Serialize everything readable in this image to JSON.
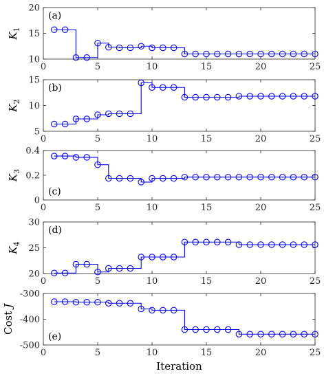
{
  "chart_data": [
    {
      "type": "line",
      "panel_label": "(a)",
      "ylabel": "K",
      "ylabel_sub": "1",
      "xlabel": "",
      "x": [
        1,
        2,
        3,
        4,
        5,
        6,
        7,
        8,
        9,
        10,
        11,
        12,
        13,
        14,
        15,
        16,
        17,
        18,
        19,
        20,
        21,
        22,
        23,
        24,
        25
      ],
      "values": [
        15.7,
        15.7,
        10.3,
        10.3,
        13.1,
        12.3,
        12.2,
        12.2,
        12.5,
        12.2,
        12.2,
        12.2,
        11.0,
        11.0,
        11.0,
        11.0,
        11.0,
        11.0,
        11.0,
        11.0,
        11.0,
        11.0,
        11.0,
        11.0,
        11.0
      ],
      "xlim": [
        0,
        25
      ],
      "ylim": [
        10,
        20
      ],
      "yticks": [
        "10",
        "15",
        "20"
      ],
      "xticks": [
        "0",
        "5",
        "10",
        "15",
        "20",
        "25"
      ]
    },
    {
      "type": "line",
      "panel_label": "(b)",
      "ylabel": "K",
      "ylabel_sub": "2",
      "xlabel": "",
      "x": [
        1,
        2,
        3,
        4,
        5,
        6,
        7,
        8,
        9,
        10,
        11,
        12,
        13,
        14,
        15,
        16,
        17,
        18,
        19,
        20,
        21,
        22,
        23,
        24,
        25
      ],
      "values": [
        6.4,
        6.4,
        7.4,
        7.4,
        8.2,
        8.4,
        8.4,
        8.4,
        14.4,
        13.5,
        13.5,
        13.5,
        11.6,
        11.6,
        11.6,
        11.6,
        11.6,
        11.8,
        11.8,
        11.8,
        11.8,
        11.8,
        11.8,
        11.8,
        11.8
      ],
      "xlim": [
        0,
        25
      ],
      "ylim": [
        5,
        15
      ],
      "yticks": [
        "5",
        "10",
        "15"
      ],
      "xticks": [
        "0",
        "5",
        "10",
        "15",
        "20",
        "25"
      ]
    },
    {
      "type": "line",
      "panel_label": "(c)",
      "ylabel": "K",
      "ylabel_sub": "3",
      "xlabel": "",
      "x": [
        1,
        2,
        3,
        4,
        5,
        6,
        7,
        8,
        9,
        10,
        11,
        12,
        13,
        14,
        15,
        16,
        17,
        18,
        19,
        20,
        21,
        22,
        23,
        24,
        25
      ],
      "values": [
        0.355,
        0.355,
        0.345,
        0.345,
        0.285,
        0.175,
        0.175,
        0.175,
        0.145,
        0.175,
        0.175,
        0.175,
        0.185,
        0.185,
        0.185,
        0.185,
        0.185,
        0.185,
        0.185,
        0.185,
        0.185,
        0.185,
        0.185,
        0.185,
        0.185
      ],
      "xlim": [
        0,
        25
      ],
      "ylim": [
        0,
        0.4
      ],
      "yticks": [
        "0",
        "0.2",
        "0.4"
      ],
      "xticks": [
        "0",
        "5",
        "10",
        "15",
        "20",
        "25"
      ]
    },
    {
      "type": "line",
      "panel_label": "(d)",
      "ylabel": "K",
      "ylabel_sub": "4",
      "xlabel": "",
      "x": [
        1,
        2,
        3,
        4,
        5,
        6,
        7,
        8,
        9,
        10,
        11,
        12,
        13,
        14,
        15,
        16,
        17,
        18,
        19,
        20,
        21,
        22,
        23,
        24,
        25
      ],
      "values": [
        20.1,
        20.1,
        21.8,
        21.8,
        20.3,
        21.0,
        21.0,
        21.0,
        23.2,
        23.2,
        23.2,
        23.2,
        26.1,
        26.1,
        26.1,
        26.1,
        26.1,
        25.6,
        25.6,
        25.6,
        25.6,
        25.6,
        25.6,
        25.6,
        25.6
      ],
      "xlim": [
        0,
        25
      ],
      "ylim": [
        20,
        30
      ],
      "yticks": [
        "20",
        "25",
        "30"
      ],
      "xticks": [
        "0",
        "5",
        "10",
        "15",
        "20",
        "25"
      ]
    },
    {
      "type": "line",
      "panel_label": "(e)",
      "ylabel": "Cost ",
      "ylabel_italic": "J",
      "xlabel": "Iteration",
      "x": [
        1,
        2,
        3,
        4,
        5,
        6,
        7,
        8,
        9,
        10,
        11,
        12,
        13,
        14,
        15,
        16,
        17,
        18,
        19,
        20,
        21,
        22,
        23,
        24,
        25
      ],
      "values": [
        -332,
        -332,
        -334,
        -334,
        -334,
        -338,
        -338,
        -338,
        -360,
        -365,
        -365,
        -365,
        -440,
        -440,
        -440,
        -440,
        -440,
        -458,
        -458,
        -458,
        -458,
        -458,
        -458,
        -458,
        -458
      ],
      "xlim": [
        0,
        25
      ],
      "ylim": [
        -500,
        -300
      ],
      "yticks": [
        "-500",
        "-400",
        "-300"
      ],
      "xticks": [
        "0",
        "5",
        "10",
        "15",
        "20",
        "25"
      ]
    }
  ],
  "style": {
    "line_color": "#0000ff",
    "axis_color": "#262626",
    "background": "#ffffff",
    "marker": "open-circle",
    "grid": false
  }
}
